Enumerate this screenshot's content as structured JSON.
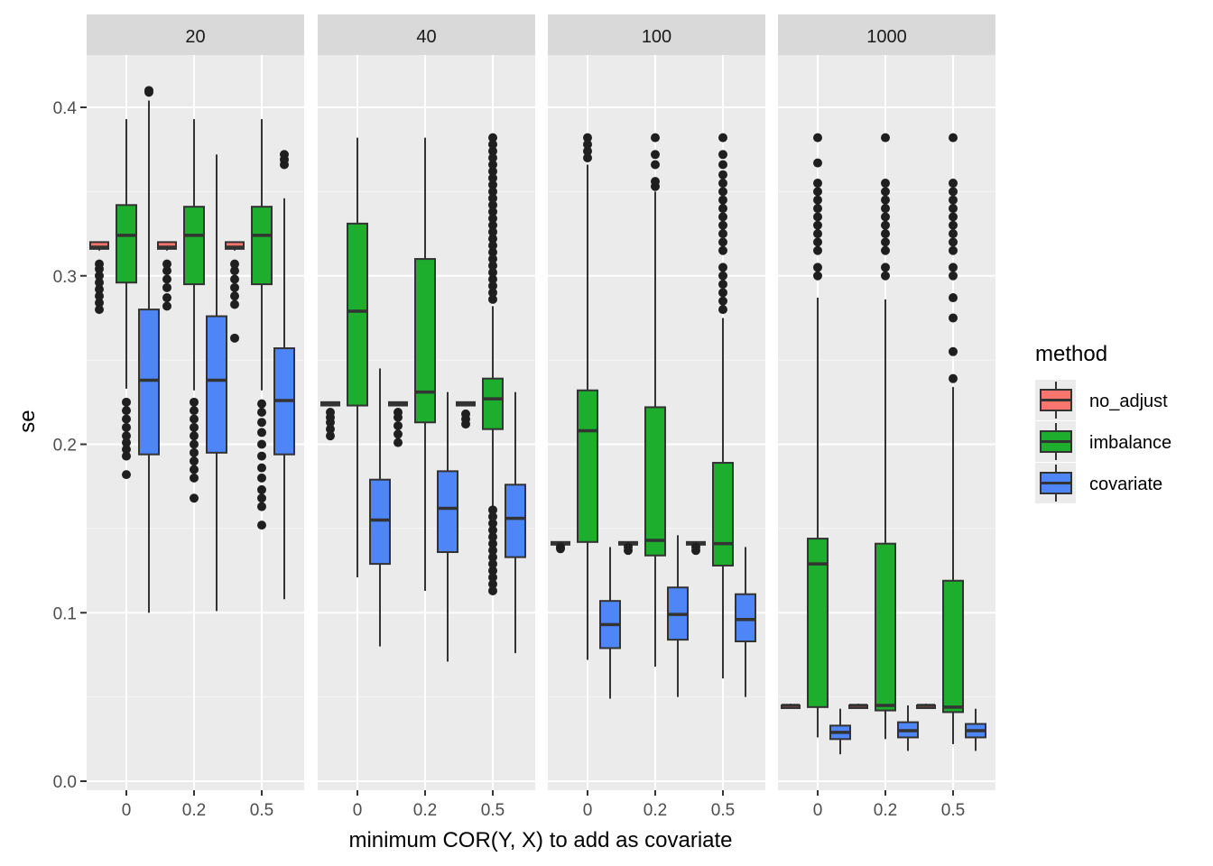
{
  "chart_data": {
    "type": "boxplot",
    "facets": [
      "20",
      "40",
      "100",
      "1000"
    ],
    "categories": [
      "0",
      "0.2",
      "0.5"
    ],
    "xlabel": "minimum COR(Y, X) to add as covariate",
    "ylabel": "se",
    "ylim": [
      0.0,
      0.43
    ],
    "yticks": [
      "0.0",
      "0.1",
      "0.2",
      "0.3",
      "0.4"
    ],
    "grid": true,
    "legend": {
      "title": "method",
      "position": "right",
      "items": [
        {
          "name": "no_adjust",
          "color": "#F8766D"
        },
        {
          "name": "imbalance",
          "color": "#1CAE2C"
        },
        {
          "name": "covariate",
          "color": "#4F86F7"
        }
      ]
    },
    "series": [
      {
        "facet": "20",
        "boxes": [
          {
            "cat": "0",
            "method": "no_adjust",
            "min": 0.315,
            "q1": 0.316,
            "median": 0.317,
            "q3": 0.32,
            "max": 0.32,
            "outliers": [
              0.28,
              0.284,
              0.288,
              0.292,
              0.296,
              0.3,
              0.304,
              0.307
            ]
          },
          {
            "cat": "0",
            "method": "imbalance",
            "min": 0.233,
            "q1": 0.296,
            "median": 0.324,
            "q3": 0.342,
            "max": 0.393,
            "outliers": [
              0.182,
              0.193,
              0.197,
              0.201,
              0.205,
              0.21,
              0.215,
              0.22,
              0.225
            ]
          },
          {
            "cat": "0",
            "method": "covariate",
            "min": 0.1,
            "q1": 0.194,
            "median": 0.238,
            "q3": 0.28,
            "max": 0.404,
            "outliers": [
              0.409,
              0.41
            ]
          },
          {
            "cat": "0.2",
            "method": "no_adjust",
            "min": 0.315,
            "q1": 0.316,
            "median": 0.317,
            "q3": 0.32,
            "max": 0.32,
            "outliers": [
              0.282,
              0.287,
              0.293,
              0.298,
              0.303,
              0.307
            ]
          },
          {
            "cat": "0.2",
            "method": "imbalance",
            "min": 0.232,
            "q1": 0.295,
            "median": 0.324,
            "q3": 0.341,
            "max": 0.393,
            "outliers": [
              0.168,
              0.18,
              0.185,
              0.19,
              0.195,
              0.2,
              0.205,
              0.21,
              0.215,
              0.22,
              0.225
            ]
          },
          {
            "cat": "0.2",
            "method": "covariate",
            "min": 0.101,
            "q1": 0.195,
            "median": 0.238,
            "q3": 0.276,
            "max": 0.372,
            "outliers": []
          },
          {
            "cat": "0.5",
            "method": "no_adjust",
            "min": 0.315,
            "q1": 0.316,
            "median": 0.317,
            "q3": 0.32,
            "max": 0.32,
            "outliers": [
              0.263,
              0.283,
              0.288,
              0.293,
              0.298,
              0.303,
              0.307
            ]
          },
          {
            "cat": "0.5",
            "method": "imbalance",
            "min": 0.232,
            "q1": 0.295,
            "median": 0.324,
            "q3": 0.341,
            "max": 0.393,
            "outliers": [
              0.152,
              0.163,
              0.168,
              0.173,
              0.18,
              0.186,
              0.193,
              0.2,
              0.207,
              0.213,
              0.219,
              0.224
            ]
          },
          {
            "cat": "0.5",
            "method": "covariate",
            "min": 0.108,
            "q1": 0.194,
            "median": 0.226,
            "q3": 0.257,
            "max": 0.346,
            "outliers": [
              0.366,
              0.369,
              0.372
            ]
          }
        ]
      },
      {
        "facet": "40",
        "boxes": [
          {
            "cat": "0",
            "method": "no_adjust",
            "min": 0.223,
            "q1": 0.223,
            "median": 0.224,
            "q3": 0.225,
            "max": 0.225,
            "outliers": [
              0.205,
              0.209,
              0.213,
              0.216,
              0.219
            ]
          },
          {
            "cat": "0",
            "method": "imbalance",
            "min": 0.121,
            "q1": 0.223,
            "median": 0.279,
            "q3": 0.331,
            "max": 0.382,
            "outliers": []
          },
          {
            "cat": "0",
            "method": "covariate",
            "min": 0.08,
            "q1": 0.129,
            "median": 0.155,
            "q3": 0.179,
            "max": 0.245,
            "outliers": []
          },
          {
            "cat": "0.2",
            "method": "no_adjust",
            "min": 0.223,
            "q1": 0.223,
            "median": 0.224,
            "q3": 0.225,
            "max": 0.225,
            "outliers": [
              0.201,
              0.206,
              0.211,
              0.216,
              0.219
            ]
          },
          {
            "cat": "0.2",
            "method": "imbalance",
            "min": 0.113,
            "q1": 0.213,
            "median": 0.231,
            "q3": 0.31,
            "max": 0.382,
            "outliers": []
          },
          {
            "cat": "0.2",
            "method": "covariate",
            "min": 0.071,
            "q1": 0.136,
            "median": 0.162,
            "q3": 0.184,
            "max": 0.231,
            "outliers": []
          },
          {
            "cat": "0.5",
            "method": "no_adjust",
            "min": 0.223,
            "q1": 0.223,
            "median": 0.224,
            "q3": 0.225,
            "max": 0.225,
            "outliers": [
              0.212,
              0.215,
              0.218
            ]
          },
          {
            "cat": "0.5",
            "method": "imbalance",
            "min": 0.163,
            "q1": 0.209,
            "median": 0.227,
            "q3": 0.239,
            "max": 0.282,
            "outliers": [
              0.113,
              0.117,
              0.121,
              0.125,
              0.129,
              0.133,
              0.137,
              0.141,
              0.145,
              0.149,
              0.153,
              0.157,
              0.161,
              0.286,
              0.29,
              0.294,
              0.298,
              0.302,
              0.306,
              0.31,
              0.314,
              0.318,
              0.322,
              0.326,
              0.33,
              0.334,
              0.338,
              0.342,
              0.346,
              0.35,
              0.354,
              0.358,
              0.362,
              0.366,
              0.37,
              0.374,
              0.378,
              0.382
            ]
          },
          {
            "cat": "0.5",
            "method": "covariate",
            "min": 0.076,
            "q1": 0.133,
            "median": 0.156,
            "q3": 0.176,
            "max": 0.231,
            "outliers": []
          }
        ]
      },
      {
        "facet": "100",
        "boxes": [
          {
            "cat": "0",
            "method": "no_adjust",
            "min": 0.141,
            "q1": 0.141,
            "median": 0.141,
            "q3": 0.142,
            "max": 0.142,
            "outliers": [
              0.138,
              0.139
            ]
          },
          {
            "cat": "0",
            "method": "imbalance",
            "min": 0.072,
            "q1": 0.142,
            "median": 0.208,
            "q3": 0.232,
            "max": 0.366,
            "outliers": [
              0.37,
              0.374,
              0.378,
              0.382
            ]
          },
          {
            "cat": "0",
            "method": "covariate",
            "min": 0.049,
            "q1": 0.079,
            "median": 0.093,
            "q3": 0.107,
            "max": 0.139,
            "outliers": []
          },
          {
            "cat": "0.2",
            "method": "no_adjust",
            "min": 0.141,
            "q1": 0.141,
            "median": 0.141,
            "q3": 0.142,
            "max": 0.142,
            "outliers": [
              0.137,
              0.139
            ]
          },
          {
            "cat": "0.2",
            "method": "imbalance",
            "min": 0.068,
            "q1": 0.134,
            "median": 0.143,
            "q3": 0.222,
            "max": 0.35,
            "outliers": [
              0.353,
              0.356,
              0.366,
              0.372,
              0.382
            ]
          },
          {
            "cat": "0.2",
            "method": "covariate",
            "min": 0.05,
            "q1": 0.084,
            "median": 0.099,
            "q3": 0.115,
            "max": 0.146,
            "outliers": []
          },
          {
            "cat": "0.5",
            "method": "no_adjust",
            "min": 0.141,
            "q1": 0.141,
            "median": 0.141,
            "q3": 0.142,
            "max": 0.142,
            "outliers": [
              0.137,
              0.139
            ]
          },
          {
            "cat": "0.5",
            "method": "imbalance",
            "min": 0.061,
            "q1": 0.128,
            "median": 0.141,
            "q3": 0.189,
            "max": 0.275,
            "outliers": [
              0.28,
              0.285,
              0.29,
              0.295,
              0.3,
              0.305,
              0.315,
              0.32,
              0.325,
              0.33,
              0.335,
              0.34,
              0.345,
              0.35,
              0.355,
              0.36,
              0.366,
              0.372,
              0.382
            ]
          },
          {
            "cat": "0.5",
            "method": "covariate",
            "min": 0.05,
            "q1": 0.083,
            "median": 0.096,
            "q3": 0.111,
            "max": 0.139,
            "outliers": []
          }
        ]
      },
      {
        "facet": "1000",
        "boxes": [
          {
            "cat": "0",
            "method": "no_adjust",
            "min": 0.044,
            "q1": 0.044,
            "median": 0.045,
            "q3": 0.045,
            "max": 0.046,
            "outliers": []
          },
          {
            "cat": "0",
            "method": "imbalance",
            "min": 0.026,
            "q1": 0.044,
            "median": 0.129,
            "q3": 0.144,
            "max": 0.287,
            "outliers": [
              0.3,
              0.305,
              0.315,
              0.32,
              0.325,
              0.33,
              0.335,
              0.34,
              0.345,
              0.35,
              0.355,
              0.367,
              0.382
            ]
          },
          {
            "cat": "0",
            "method": "covariate",
            "min": 0.016,
            "q1": 0.025,
            "median": 0.029,
            "q3": 0.033,
            "max": 0.043,
            "outliers": []
          },
          {
            "cat": "0.2",
            "method": "no_adjust",
            "min": 0.044,
            "q1": 0.044,
            "median": 0.045,
            "q3": 0.045,
            "max": 0.046,
            "outliers": []
          },
          {
            "cat": "0.2",
            "method": "imbalance",
            "min": 0.025,
            "q1": 0.042,
            "median": 0.045,
            "q3": 0.141,
            "max": 0.286,
            "outliers": [
              0.3,
              0.305,
              0.315,
              0.32,
              0.325,
              0.33,
              0.335,
              0.34,
              0.345,
              0.35,
              0.355,
              0.382
            ]
          },
          {
            "cat": "0.2",
            "method": "covariate",
            "min": 0.018,
            "q1": 0.026,
            "median": 0.03,
            "q3": 0.035,
            "max": 0.045,
            "outliers": []
          },
          {
            "cat": "0.5",
            "method": "no_adjust",
            "min": 0.044,
            "q1": 0.044,
            "median": 0.045,
            "q3": 0.045,
            "max": 0.046,
            "outliers": []
          },
          {
            "cat": "0.5",
            "method": "imbalance",
            "min": 0.022,
            "q1": 0.041,
            "median": 0.044,
            "q3": 0.119,
            "max": 0.234,
            "outliers": [
              0.239,
              0.255,
              0.275,
              0.287,
              0.3,
              0.305,
              0.315,
              0.32,
              0.325,
              0.33,
              0.335,
              0.34,
              0.345,
              0.35,
              0.355,
              0.382
            ]
          },
          {
            "cat": "0.5",
            "method": "covariate",
            "min": 0.018,
            "q1": 0.026,
            "median": 0.03,
            "q3": 0.034,
            "max": 0.043,
            "outliers": []
          }
        ]
      }
    ]
  }
}
